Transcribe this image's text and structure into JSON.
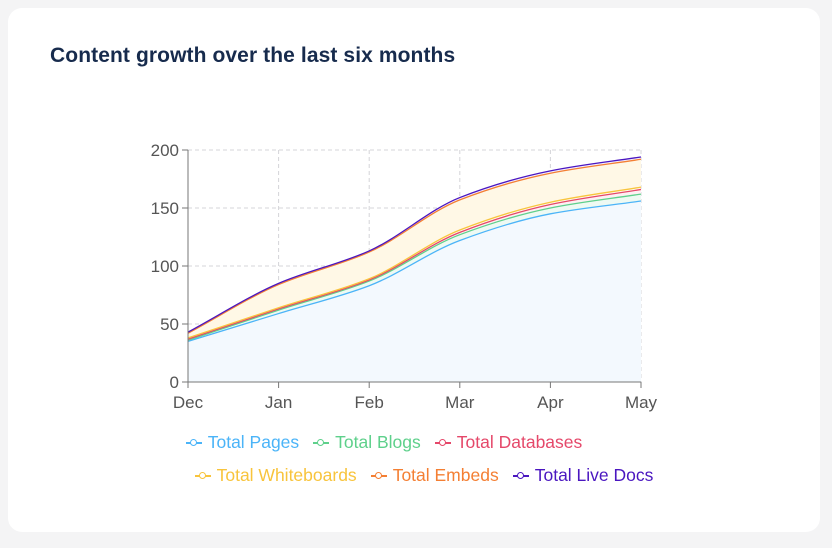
{
  "title": "Content growth over the last six months",
  "chart_data": {
    "type": "area",
    "stacked": true,
    "title": "Content growth over the last six months",
    "categories": [
      "Dec",
      "Jan",
      "Feb",
      "Mar",
      "Apr",
      "May"
    ],
    "ylim": [
      0,
      200
    ],
    "yticks": [
      "0",
      "50",
      "100",
      "150",
      "200"
    ],
    "grid": true,
    "legend": "bottom",
    "series": [
      {
        "name": "Total Pages",
        "color": "#4bb4f8",
        "values": [
          35,
          59,
          83,
          122,
          145,
          156
        ]
      },
      {
        "name": "Total Blogs",
        "color": "#5ed08b",
        "values": [
          1,
          3,
          4,
          5,
          5,
          6
        ]
      },
      {
        "name": "Total Databases",
        "color": "#e5486a",
        "values": [
          1,
          1,
          1,
          2,
          3,
          4
        ]
      },
      {
        "name": "Total Whiteboards",
        "color": "#f8c43c",
        "values": [
          1,
          1,
          1,
          2,
          2,
          2
        ]
      },
      {
        "name": "Total Embeds",
        "color": "#f47f33",
        "values": [
          4,
          20,
          23,
          26,
          25,
          24
        ]
      },
      {
        "name": "Total Live Docs",
        "color": "#4a16c0",
        "values": [
          1,
          1,
          1,
          2,
          2,
          2
        ]
      }
    ]
  }
}
